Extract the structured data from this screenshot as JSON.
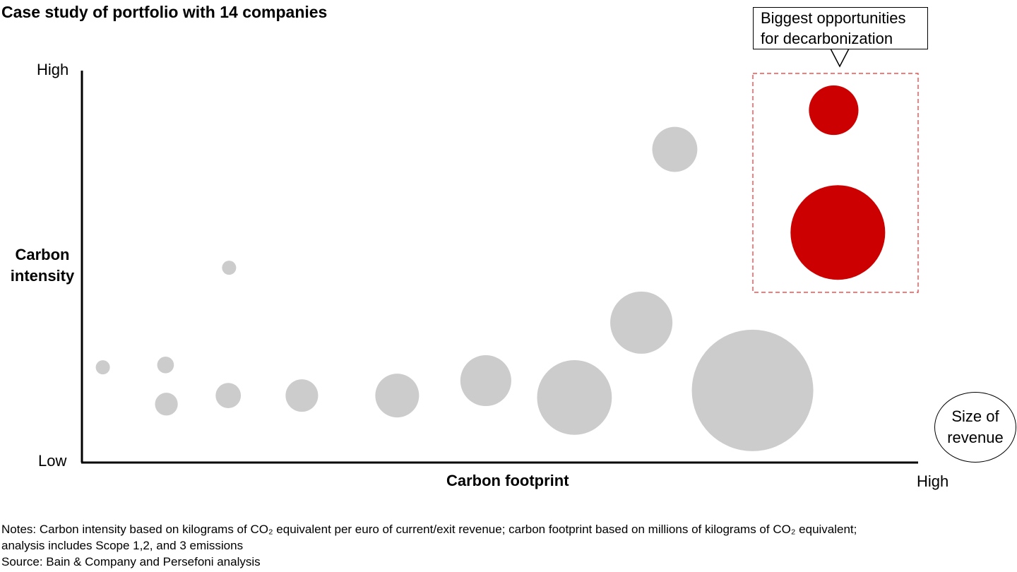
{
  "title": "Case study of portfolio with 14 companies",
  "chart_data": {
    "type": "scatter",
    "subtype": "bubble",
    "title": "Case study of portfolio with 14 companies",
    "xlabel": "Carbon footprint",
    "ylabel": "Carbon intensity",
    "x_tick_labels": {
      "high": "High"
    },
    "y_tick_labels": {
      "low": "Low",
      "high": "High"
    },
    "xlim": [
      0,
      100
    ],
    "ylim": [
      0,
      100
    ],
    "grid": false,
    "size_legend": "Size of revenue",
    "annotation": "Biggest opportunities for decarbonization",
    "colors": {
      "default": "#cccccc",
      "highlight": "#cc0000",
      "box": "#e8302f"
    },
    "points": [
      {
        "x": 2.5,
        "y": 24.3,
        "revenue_relative": 1.0,
        "highlight": false
      },
      {
        "x": 10.0,
        "y": 24.9,
        "revenue_relative": 1.4,
        "highlight": false
      },
      {
        "x": 10.1,
        "y": 14.9,
        "revenue_relative": 2.6,
        "highlight": false
      },
      {
        "x": 17.5,
        "y": 17.1,
        "revenue_relative": 3.2,
        "highlight": false
      },
      {
        "x": 17.6,
        "y": 49.7,
        "revenue_relative": 1.0,
        "highlight": false
      },
      {
        "x": 26.3,
        "y": 17.1,
        "revenue_relative": 5.3,
        "highlight": false
      },
      {
        "x": 37.7,
        "y": 17.1,
        "revenue_relative": 9.6,
        "highlight": false
      },
      {
        "x": 48.3,
        "y": 20.9,
        "revenue_relative": 13.0,
        "highlight": false
      },
      {
        "x": 58.9,
        "y": 16.6,
        "revenue_relative": 28.0,
        "highlight": false
      },
      {
        "x": 66.9,
        "y": 35.7,
        "revenue_relative": 19.4,
        "highlight": false
      },
      {
        "x": 70.9,
        "y": 79.9,
        "revenue_relative": 10.2,
        "highlight": false
      },
      {
        "x": 80.2,
        "y": 18.4,
        "revenue_relative": 74.0,
        "highlight": false
      },
      {
        "x": 89.9,
        "y": 89.9,
        "revenue_relative": 12.3,
        "highlight": true
      },
      {
        "x": 90.4,
        "y": 58.7,
        "revenue_relative": 44.9,
        "highlight": true
      }
    ]
  },
  "callout": {
    "line1": "Biggest opportunities",
    "line2": "for decarbonization"
  },
  "legend": {
    "line1": "Size of",
    "line2": "revenue"
  },
  "ylabel": {
    "line1": "Carbon",
    "line2": "intensity"
  },
  "notes": {
    "line1": "Notes: Carbon intensity based on kilograms of CO₂ equivalent per euro of current/exit revenue; carbon footprint based on millions of kilograms of CO₂ equivalent;",
    "line2": "analysis includes Scope 1,2, and 3 emissions",
    "source": "Source: Bain & Company and Persefoni analysis"
  }
}
